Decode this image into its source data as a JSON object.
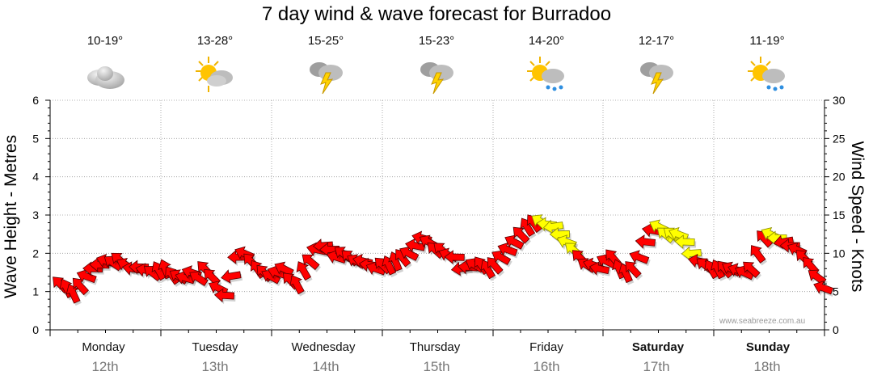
{
  "chart_data": {
    "type": "line",
    "title": "7 day wind & wave forecast for Burradoo",
    "left_axis": {
      "label": "Wave Height - Metres",
      "range": [
        0,
        6
      ],
      "ticks": [
        "0",
        "1",
        "2",
        "3",
        "4",
        "5",
        "6"
      ]
    },
    "right_axis": {
      "label": "Wind Speed - Knots",
      "range": [
        0,
        30
      ],
      "ticks": [
        "0",
        "5",
        "10",
        "15",
        "20",
        "25",
        "30"
      ]
    },
    "grid": true,
    "days": [
      {
        "name": "Monday",
        "date": "12th",
        "temp": "10-19°",
        "icon": "cloudy-icon",
        "bold": false
      },
      {
        "name": "Tuesday",
        "date": "13th",
        "temp": "13-28°",
        "icon": "partly-cloudy-icon",
        "bold": false
      },
      {
        "name": "Wednesday",
        "date": "14th",
        "temp": "15-25°",
        "icon": "thunderstorm-icon",
        "bold": false
      },
      {
        "name": "Thursday",
        "date": "15th",
        "temp": "15-23°",
        "icon": "thunderstorm-icon",
        "bold": false
      },
      {
        "name": "Friday",
        "date": "16th",
        "temp": "14-20°",
        "icon": "sun-shower-icon",
        "bold": false
      },
      {
        "name": "Saturday",
        "date": "17th",
        "temp": "12-17°",
        "icon": "thunderstorm-icon",
        "bold": true
      },
      {
        "name": "Sunday",
        "date": "18th",
        "temp": "11-19°",
        "icon": "sun-shower-icon",
        "bold": true
      }
    ],
    "series": [
      {
        "name": "Wind Speed",
        "unit": "knots",
        "marker": "direction-arrow",
        "colors": {
          "normal": "#ff0000",
          "strong": "#ffff00"
        },
        "values": [
          6.0,
          5.5,
          4.8,
          5.8,
          7.0,
          8.0,
          8.5,
          9.0,
          8.8,
          9.2,
          8.5,
          8.0,
          8.2,
          7.8,
          7.5,
          7.8,
          8.0,
          7.2,
          7.0,
          6.8,
          7.5,
          6.8,
          8.0,
          7.0,
          5.5,
          4.5,
          7.0,
          9.5,
          10.0,
          9.0,
          8.0,
          7.5,
          7.0,
          7.5,
          8.0,
          6.5,
          6.0,
          7.8,
          9.0,
          10.5,
          11.0,
          10.5,
          9.5,
          10.0,
          9.5,
          9.0,
          9.0,
          8.5,
          8.0,
          8.5,
          8.5,
          9.0,
          9.5,
          10.0,
          11.0,
          12.0,
          11.5,
          10.5,
          10.5,
          9.8,
          9.5,
          8.0,
          8.2,
          8.5,
          8.5,
          8.0,
          8.5,
          9.5,
          10.5,
          11.5,
          12.5,
          13.5,
          14.0,
          14.2,
          13.8,
          13.5,
          12.5,
          11.5,
          10.5,
          9.5,
          8.5,
          8.5,
          8.0,
          9.0,
          9.5,
          8.0,
          7.5,
          8.0,
          9.5,
          11.5,
          13.0,
          13.5,
          12.5,
          12.5,
          12.5,
          11.5,
          10.0,
          9.0,
          8.5,
          8.0,
          8.0,
          8.0,
          8.0,
          7.8,
          7.5,
          8.0,
          10.0,
          12.0,
          12.5,
          12.0,
          11.5,
          11.0,
          10.5,
          9.5,
          8.5,
          7.0,
          5.5
        ],
        "strong_indices": [
          73,
          74,
          75,
          76,
          77,
          78,
          91,
          92,
          93,
          94,
          95,
          96,
          108,
          109
        ]
      },
      {
        "name": "Wave Height",
        "unit": "metres",
        "marker": "none",
        "values": []
      }
    ]
  },
  "watermark": "www.seabreeze.com.au"
}
